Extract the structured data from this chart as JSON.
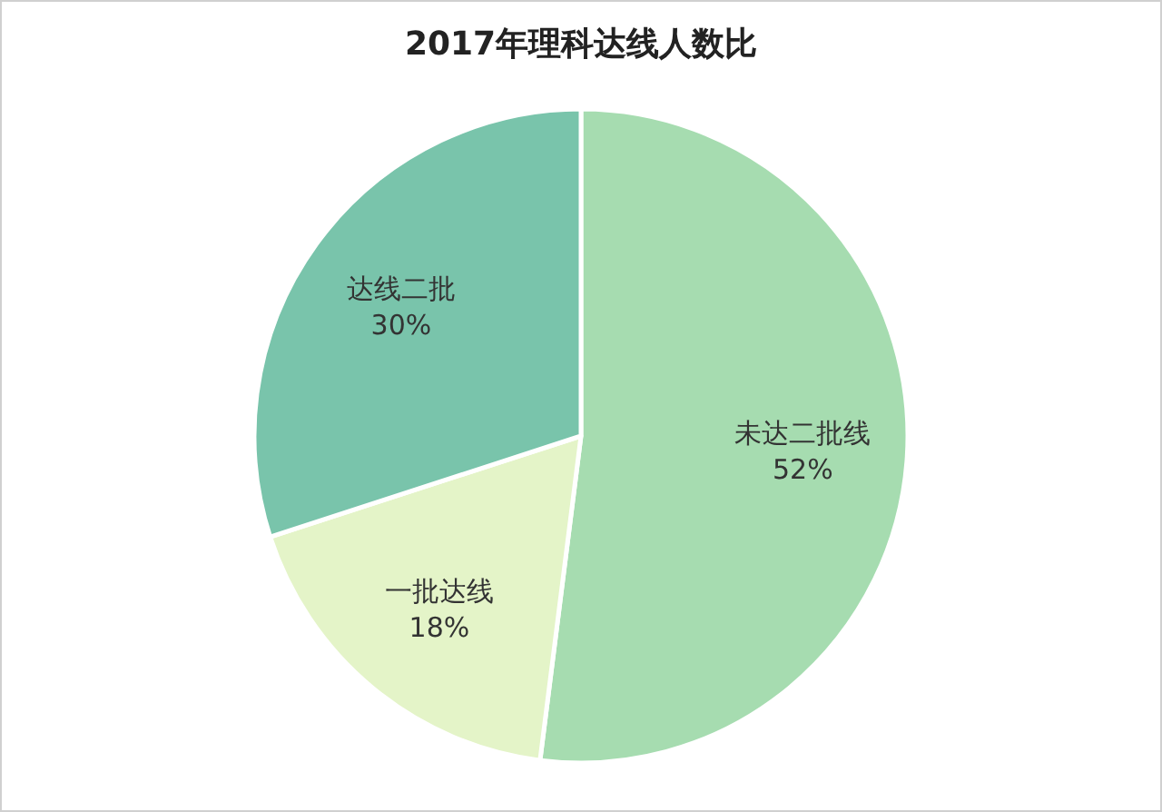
{
  "chart_data": {
    "type": "pie",
    "title": "2017年理科达线人数比",
    "categories": [
      "未达二批线",
      "一批达线",
      "达线二批"
    ],
    "values": [
      52,
      18,
      30
    ],
    "value_labels": [
      "52%",
      "18%",
      "30%"
    ],
    "colors": [
      "#a6dcb0",
      "#e4f4c8",
      "#79c4ab"
    ],
    "legend": false
  }
}
